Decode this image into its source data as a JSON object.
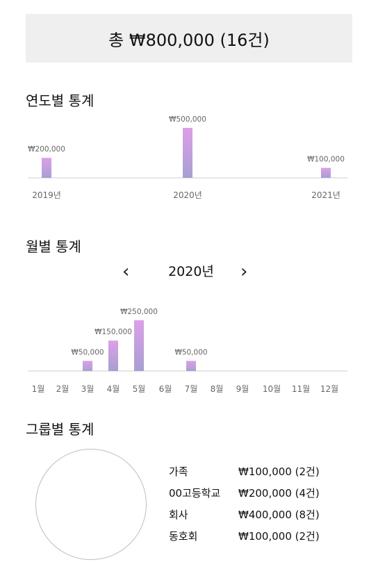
{
  "summary": {
    "total_label": "총 ₩800,000 (16건)"
  },
  "yearly": {
    "title": "연도별 통계",
    "chart_data": {
      "type": "bar",
      "categories": [
        "2019년",
        "2020년",
        "2021년"
      ],
      "values": [
        200000,
        500000,
        100000
      ],
      "value_labels": [
        "₩200,000",
        "₩500,000",
        "₩100,000"
      ],
      "ylim": [
        0,
        500000
      ]
    }
  },
  "monthly": {
    "title": "월별 통계",
    "year_label": "2020년",
    "prev_icon": "chevron-left-icon",
    "next_icon": "chevron-right-icon",
    "chart_data": {
      "type": "bar",
      "categories": [
        "1월",
        "2월",
        "3월",
        "4월",
        "5월",
        "6월",
        "7월",
        "8월",
        "9월",
        "10월",
        "11월",
        "12월"
      ],
      "values": [
        0,
        0,
        50000,
        150000,
        250000,
        0,
        50000,
        0,
        0,
        0,
        0,
        0
      ],
      "value_labels": [
        "",
        "",
        "₩50,000",
        "₩150,000",
        "₩250,000",
        "",
        "₩50,000",
        "",
        "",
        "",
        "",
        ""
      ],
      "ylim": [
        0,
        250000
      ]
    }
  },
  "groups": {
    "title": "그룹별 통계",
    "chart_data": {
      "type": "pie",
      "categories": [
        "가족",
        "00고등학교",
        "회사",
        "동호회"
      ],
      "values": [
        100000,
        200000,
        400000,
        100000
      ]
    },
    "items": [
      {
        "name": "가족",
        "value": "₩100,000 (2건)"
      },
      {
        "name": "00고등학교",
        "value": "₩200,000 (4건)"
      },
      {
        "name": "회사",
        "value": "₩400,000 (8건)"
      },
      {
        "name": "동호회",
        "value": "₩100,000 (2건)"
      }
    ]
  },
  "colors": {
    "bar_top": "#dd9fe8",
    "bar_bottom": "#a79fd2",
    "axis": "#cccccc",
    "label": "#666666"
  }
}
